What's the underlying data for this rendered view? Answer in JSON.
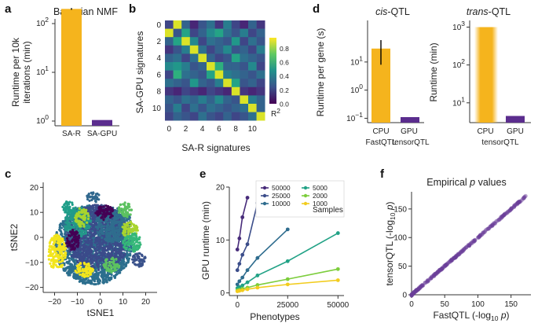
{
  "panels": {
    "a": {
      "letter": "a"
    },
    "b": {
      "letter": "b"
    },
    "c": {
      "letter": "c"
    },
    "d": {
      "letter": "d"
    },
    "e": {
      "letter": "e"
    },
    "f": {
      "letter": "f"
    }
  },
  "sup": {
    "two": "2",
    "one": "1",
    "zero": "0",
    "minus_one": "−1",
    "three": "3"
  },
  "colors": {
    "orange": "#f5b41d",
    "purple": "#5b2d8e",
    "seq": [
      "#472b7a",
      "#3c4f8a",
      "#2f6d8e",
      "#23998a",
      "#5cc160",
      "#a8d42e",
      "#f2cc1d"
    ]
  },
  "chart_data": [
    {
      "id": "a",
      "type": "bar",
      "title": "Bayesian NMF",
      "ylabel_line1": "Runtime per 10k",
      "ylabel_line2": "iterations (min)",
      "yscale": "log",
      "ylim": [
        0.8,
        400
      ],
      "ytick_base": "10",
      "yticks": [
        1,
        10,
        100
      ],
      "categories": [
        "SA-R",
        "SA-GPU"
      ],
      "values": [
        200,
        1.05
      ],
      "errors": [
        8,
        0.02
      ]
    },
    {
      "id": "b",
      "type": "heatmap",
      "xlabel": "SA-R signatures",
      "ylabel": "SA-GPU signatures",
      "xticks": [
        "0",
        "2",
        "4",
        "6",
        "8",
        "10"
      ],
      "yticks": [
        "0",
        "2",
        "4",
        "6",
        "8",
        "10"
      ],
      "size": 12,
      "colorbar_label": "R",
      "colorbar_label_sup": "2",
      "colorbar_ticks": [
        "0.0",
        "0.2",
        "0.4",
        "0.6",
        "0.8"
      ],
      "vmin": 0,
      "vmax": 0.95,
      "matrix": [
        [
          0.2,
          0.9,
          0.3,
          0.1,
          0.25,
          0.35,
          0.15,
          0.4,
          0.2,
          0.1,
          0.3,
          0.15
        ],
        [
          0.9,
          0.25,
          0.55,
          0.2,
          0.3,
          0.45,
          0.55,
          0.35,
          0.25,
          0.4,
          0.2,
          0.3
        ],
        [
          0.3,
          0.55,
          0.9,
          0.45,
          0.2,
          0.35,
          0.3,
          0.25,
          0.5,
          0.2,
          0.35,
          0.25
        ],
        [
          0.15,
          0.25,
          0.4,
          0.9,
          0.35,
          0.2,
          0.3,
          0.45,
          0.25,
          0.3,
          0.2,
          0.4
        ],
        [
          0.3,
          0.35,
          0.2,
          0.35,
          0.9,
          0.3,
          0.2,
          0.25,
          0.55,
          0.35,
          0.3,
          0.25
        ],
        [
          0.45,
          0.5,
          0.4,
          0.25,
          0.3,
          0.9,
          0.6,
          0.3,
          0.3,
          0.25,
          0.45,
          0.2
        ],
        [
          0.2,
          0.6,
          0.35,
          0.3,
          0.25,
          0.55,
          0.9,
          0.4,
          0.35,
          0.3,
          0.25,
          0.35
        ],
        [
          0.35,
          0.3,
          0.25,
          0.5,
          0.3,
          0.25,
          0.4,
          0.9,
          0.55,
          0.25,
          0.3,
          0.2
        ],
        [
          0.15,
          0.1,
          0.2,
          0.15,
          0.1,
          0.2,
          0.15,
          0.1,
          0.9,
          0.15,
          0.1,
          0.15
        ],
        [
          0.3,
          0.25,
          0.35,
          0.3,
          0.4,
          0.3,
          0.45,
          0.3,
          0.25,
          0.9,
          0.4,
          0.3
        ],
        [
          0.25,
          0.4,
          0.2,
          0.35,
          0.25,
          0.35,
          0.3,
          0.25,
          0.3,
          0.35,
          0.9,
          0.3
        ],
        [
          0.2,
          0.3,
          0.25,
          0.2,
          0.35,
          0.25,
          0.2,
          0.3,
          0.2,
          0.25,
          0.35,
          0.9
        ]
      ]
    },
    {
      "id": "c",
      "type": "scatter",
      "xlabel": "tSNE1",
      "ylabel": "tSNE2",
      "xlim": [
        -25,
        25
      ],
      "ylim": [
        -22,
        22
      ],
      "xticks": [
        "−20",
        "−10",
        "0",
        "10",
        "20"
      ],
      "yticks": [
        "20",
        "10",
        "0",
        "−10",
        "−20"
      ],
      "xtick_values": [
        -20,
        -10,
        0,
        10,
        20
      ],
      "ytick_values": [
        20,
        10,
        0,
        -10,
        -20
      ],
      "clusters": [
        {
          "x": -3,
          "y": -3,
          "rx": 17,
          "ry": 16,
          "color": "#2c6f8e"
        },
        {
          "x": -1,
          "y": 0,
          "rx": 14,
          "ry": 13,
          "color": "#3b4b8a"
        },
        {
          "x": 6,
          "y": 5,
          "rx": 8,
          "ry": 7,
          "color": "#2f6d8e"
        },
        {
          "x": -10,
          "y": 6,
          "rx": 6,
          "ry": 6,
          "color": "#23998a"
        },
        {
          "x": -19,
          "y": -6,
          "rx": 4,
          "ry": 7,
          "color": "#f2e51d"
        },
        {
          "x": -7,
          "y": -13,
          "rx": 4,
          "ry": 3,
          "color": "#f2e51d"
        },
        {
          "x": 13,
          "y": 3,
          "rx": 3.5,
          "ry": 3.5,
          "color": "#a8d42e"
        },
        {
          "x": -8,
          "y": 8,
          "rx": 3,
          "ry": 4,
          "color": "#a8d42e"
        },
        {
          "x": 11,
          "y": 11,
          "rx": 3,
          "ry": 3,
          "color": "#5cc160"
        },
        {
          "x": 5,
          "y": -11,
          "rx": 3.5,
          "ry": 3,
          "color": "#5cc160"
        },
        {
          "x": -12,
          "y": -1,
          "rx": 3,
          "ry": 4,
          "color": "#440154"
        },
        {
          "x": 14,
          "y": -2,
          "rx": 4,
          "ry": 4,
          "color": "#35b779"
        },
        {
          "x": 2,
          "y": 10,
          "rx": 4,
          "ry": 3,
          "color": "#440154"
        },
        {
          "x": -14,
          "y": 12,
          "rx": 2.5,
          "ry": 2.5,
          "color": "#1f9e89"
        },
        {
          "x": 17,
          "y": -9,
          "rx": 3,
          "ry": 3,
          "color": "#3b528b"
        },
        {
          "x": -3,
          "y": 16,
          "rx": 3,
          "ry": 2,
          "color": "#31688e"
        }
      ]
    },
    {
      "id": "d1",
      "type": "bar",
      "title": "cis",
      "title_suffix": "-QTL",
      "ylabel": "Runtime per gene (s)",
      "yscale": "log",
      "ylim": [
        0.07,
        300
      ],
      "ytick_base": "10",
      "yticks": [
        0.1,
        1,
        10
      ],
      "categories": [
        "CPU",
        "GPU"
      ],
      "sublabels": [
        "FastQTL",
        "tensorQTL"
      ],
      "values": [
        30,
        0.11
      ],
      "err_low": [
        8,
        0.1
      ],
      "err_high": [
        60,
        0.12
      ]
    },
    {
      "id": "d2",
      "type": "bar",
      "title": "trans",
      "title_suffix": "-QTL",
      "ylabel": "Runtime (min)",
      "yscale": "log",
      "ylim": [
        3,
        1500
      ],
      "ytick_base": "10",
      "yticks": [
        10,
        100,
        1000
      ],
      "categories": [
        "CPU",
        "GPU"
      ],
      "sublabel": "tensorQTL",
      "values": [
        1000,
        4.5
      ]
    },
    {
      "id": "e",
      "type": "line",
      "xlabel": "Phenotypes",
      "ylabel": "GPU runtime (min)",
      "xlim": [
        -4000,
        53000
      ],
      "ylim": [
        -0.5,
        20
      ],
      "xticks": [
        0,
        25000,
        50000
      ],
      "yticks": [
        0,
        10,
        20
      ],
      "legend_title": "Samples",
      "series": [
        {
          "name": "50000",
          "color": "#472b7a",
          "x": [
            0,
            1000,
            2500,
            5000
          ],
          "y": [
            8.2,
            10.3,
            14.3,
            18.0
          ]
        },
        {
          "name": "25000",
          "color": "#3b4d8a",
          "x": [
            0,
            1000,
            2500,
            5000,
            10000
          ],
          "y": [
            4.3,
            5.5,
            7.2,
            9.2,
            17.0
          ]
        },
        {
          "name": "10000",
          "color": "#2e6c8e",
          "x": [
            0,
            1000,
            2500,
            5000,
            10000,
            25000
          ],
          "y": [
            1.6,
            2.2,
            2.9,
            4.3,
            6.6,
            12.0
          ]
        },
        {
          "name": "5000",
          "color": "#22a286",
          "x": [
            0,
            1000,
            2500,
            5000,
            10000,
            25000,
            50000
          ],
          "y": [
            0.9,
            1.1,
            1.4,
            2.0,
            3.3,
            6.0,
            11.3
          ]
        },
        {
          "name": "2000",
          "color": "#7ccd3c",
          "x": [
            0,
            1000,
            2500,
            5000,
            10000,
            25000,
            50000
          ],
          "y": [
            0.5,
            0.6,
            0.8,
            1.0,
            1.5,
            2.6,
            4.5
          ]
        },
        {
          "name": "1000",
          "color": "#f2cc1d",
          "x": [
            0,
            1000,
            2500,
            5000,
            10000,
            25000,
            50000
          ],
          "y": [
            0.3,
            0.4,
            0.5,
            0.7,
            1.0,
            1.6,
            2.4
          ]
        }
      ]
    },
    {
      "id": "f",
      "type": "scatter",
      "title": "Empirical ",
      "title_italic": "p",
      "title_suffix": " values",
      "xlabel": "FastQTL (-log",
      "xlabel_sub": "10",
      "xlabel_italic": " p",
      "xlabel_close": ")",
      "ylabel": "tensorQTL (-log",
      "ylabel_sub": "10",
      "ylabel_italic": " p",
      "ylabel_close": ")",
      "xlim": [
        0,
        180
      ],
      "ylim": [
        0,
        180
      ],
      "xticks": [
        0,
        50,
        100,
        150
      ],
      "yticks": [
        0,
        50,
        100,
        150
      ],
      "points_from": 0,
      "points_to": 172
    }
  ]
}
